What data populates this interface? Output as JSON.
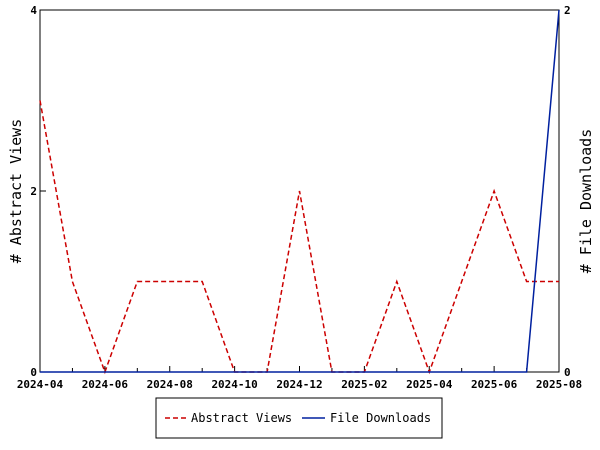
{
  "chart_data": {
    "type": "line",
    "x": [
      "2024-04",
      "2024-05",
      "2024-06",
      "2024-07",
      "2024-08",
      "2024-09",
      "2024-10",
      "2024-11",
      "2024-12",
      "2025-01",
      "2025-02",
      "2025-03",
      "2025-04",
      "2025-05",
      "2025-06",
      "2025-07",
      "2025-08"
    ],
    "x_tick_labels": [
      "2024-04",
      "2024-06",
      "2024-08",
      "2024-10",
      "2024-12",
      "2025-02",
      "2025-04",
      "2025-06",
      "2025-08"
    ],
    "y_left": {
      "label": "# Abstract Views",
      "range": [
        0,
        4
      ],
      "ticks": [
        "0",
        "2",
        "4"
      ]
    },
    "y_right": {
      "label": "# File Downloads",
      "range": [
        0,
        2
      ],
      "ticks": [
        "0",
        "2"
      ]
    },
    "series": [
      {
        "name": "Abstract Views",
        "axis": "left",
        "color": "#cc0000",
        "style": "dashed",
        "values": [
          3,
          1,
          0,
          1,
          1,
          1,
          0,
          0,
          2,
          0,
          0,
          1,
          0,
          1,
          2,
          1,
          1
        ]
      },
      {
        "name": "File Downloads",
        "axis": "right",
        "color": "#00209f",
        "style": "solid",
        "values": [
          0,
          0,
          0,
          0,
          0,
          0,
          0,
          0,
          0,
          0,
          0,
          0,
          0,
          0,
          0,
          0,
          2
        ]
      }
    ],
    "grid": false,
    "legend": "bottom"
  }
}
